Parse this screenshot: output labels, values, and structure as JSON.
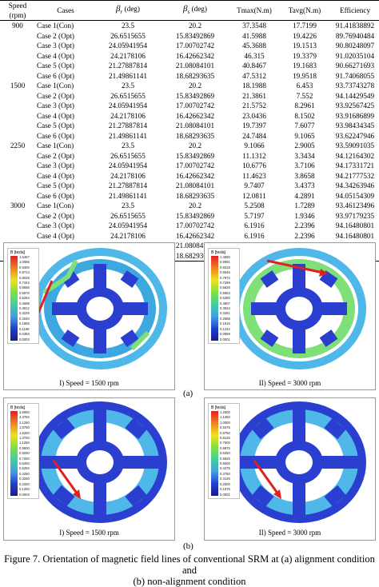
{
  "table": {
    "headers": {
      "speed": "Speed (rpm)",
      "cases": "Cases",
      "beta_r": "(deg)",
      "beta_s": "(deg)",
      "tmax": "Tmax(N.m)",
      "tavg": "Tavg(N.m)",
      "efficiency": "Efficiency"
    },
    "rows": [
      {
        "speed": "900",
        "case": "Case 1(Con)",
        "br": "23.5",
        "bs": "20.2",
        "tmax": "37.3548",
        "tavg": "17.7199",
        "eff": "91.41838892"
      },
      {
        "speed": "",
        "case": "Case 2 (Opt)",
        "br": "26.6515655",
        "bs": "15.83492869",
        "tmax": "41.5988",
        "tavg": "19.4226",
        "eff": "89.76940484"
      },
      {
        "speed": "",
        "case": "Case 3 (Opt)",
        "br": "24.05941954",
        "bs": "17.00702742",
        "tmax": "45.3688",
        "tavg": "19.1513",
        "eff": "90.80248097"
      },
      {
        "speed": "",
        "case": "Case 4 (Opt)",
        "br": "24.2178106",
        "bs": "16.42662342",
        "tmax": "46.315",
        "tavg": "19.3379",
        "eff": "91.02035104"
      },
      {
        "speed": "",
        "case": "Case 5 (Opt)",
        "br": "21.27887814",
        "bs": "21.08084101",
        "tmax": "40.8467",
        "tavg": "19.1683",
        "eff": "90.66271693"
      },
      {
        "speed": "",
        "case": "Case 6 (Opt)",
        "br": "21.49861141",
        "bs": "18.68293635",
        "tmax": "47.5312",
        "tavg": "19.9518",
        "eff": "91.74068055"
      },
      {
        "speed": "1500",
        "case": "Case 1(Con)",
        "br": "23.5",
        "bs": "20.2",
        "tmax": "18.1988",
        "tavg": "6.453",
        "eff": "93.73743278"
      },
      {
        "speed": "",
        "case": "Case 2 (Opt)",
        "br": "26.6515655",
        "bs": "15.83492869",
        "tmax": "21.3861",
        "tavg": "7.552",
        "eff": "94.14429549"
      },
      {
        "speed": "",
        "case": "Case 3 (Opt)",
        "br": "24.05941954",
        "bs": "17.00702742",
        "tmax": "21.5752",
        "tavg": "8.2961",
        "eff": "93.92567425"
      },
      {
        "speed": "",
        "case": "Case 4 (Opt)",
        "br": "24.2178106",
        "bs": "16.42662342",
        "tmax": "23.0436",
        "tavg": "8.1502",
        "eff": "93.91686899"
      },
      {
        "speed": "",
        "case": "Case 5 (Opt)",
        "br": "21.27887814",
        "bs": "21.08084101",
        "tmax": "19.7397",
        "tavg": "7.6077",
        "eff": "93.98434345"
      },
      {
        "speed": "",
        "case": "Case 6 (Opt)",
        "br": "21.49861141",
        "bs": "18.68293635",
        "tmax": "24.7484",
        "tavg": "9.1065",
        "eff": "93.62247946"
      },
      {
        "speed": "2250",
        "case": "Case 1(Con)",
        "br": "23.5",
        "bs": "20.2",
        "tmax": "9.1066",
        "tavg": "2.9005",
        "eff": "93.59091035"
      },
      {
        "speed": "",
        "case": "Case 2 (Opt)",
        "br": "26.6515655",
        "bs": "15.83492869",
        "tmax": "11.1312",
        "tavg": "3.3434",
        "eff": "94.12164302"
      },
      {
        "speed": "",
        "case": "Case 3 (Opt)",
        "br": "24.05941954",
        "bs": "17.00702742",
        "tmax": "10.6776",
        "tavg": "3.7106",
        "eff": "94.17331721"
      },
      {
        "speed": "",
        "case": "Case 4 (Opt)",
        "br": "24.2178106",
        "bs": "16.42662342",
        "tmax": "11.4623",
        "tavg": "3.8658",
        "eff": "94.21777532"
      },
      {
        "speed": "",
        "case": "Case 5 (Opt)",
        "br": "21.27887814",
        "bs": "21.08084101",
        "tmax": "9.7407",
        "tavg": "3.4373",
        "eff": "94.34263946"
      },
      {
        "speed": "",
        "case": "Case 6 (Opt)",
        "br": "21.49861141",
        "bs": "18.68293635",
        "tmax": "12.0811",
        "tavg": "4.2891",
        "eff": "94.05154309"
      },
      {
        "speed": "3000",
        "case": "Case 1(Con)",
        "br": "23.5",
        "bs": "20.2",
        "tmax": "5.2508",
        "tavg": "1.7289",
        "eff": "93.46123496"
      },
      {
        "speed": "",
        "case": "Case 2 (Opt)",
        "br": "26.6515655",
        "bs": "15.83492869",
        "tmax": "5.7197",
        "tavg": "1.9346",
        "eff": "93.97179235"
      },
      {
        "speed": "",
        "case": "Case 3 (Opt)",
        "br": "24.05941954",
        "bs": "17.00702742",
        "tmax": "6.1916",
        "tavg": "2.2396",
        "eff": "94.16480801"
      },
      {
        "speed": "",
        "case": "Case 4 (Opt)",
        "br": "24.2178106",
        "bs": "16.42662342",
        "tmax": "6.1916",
        "tavg": "2.2396",
        "eff": "94.16480801"
      },
      {
        "speed": "",
        "case": "Case 5 (Opt)",
        "br": "21.27887814",
        "bs": "21.08084101",
        "tmax": "5.6722",
        "tavg": "2.0619",
        "eff": "94.04731175"
      },
      {
        "speed": "",
        "case": "Case 6 (Opt)",
        "br": "21.49861141",
        "bs": "18.68293635",
        "tmax": "8.4088",
        "tavg": "2.5748",
        "eff": "94.66352466"
      }
    ]
  },
  "figure": {
    "panels": [
      {
        "caption": "I) Speed = 1500 rpm",
        "legend_title": "B [tesla]",
        "legend_values": [
          "1.6467",
          "1.0086",
          "0.9400",
          "0.8714",
          "0.8028",
          "0.7342",
          "0.6656",
          "0.5970",
          "0.5284",
          "0.4598",
          "0.3912",
          "0.3226",
          "0.2540",
          "0.1855",
          "0.1169",
          "0.0483",
          "0.0003"
        ]
      },
      {
        "caption": "II) Speed = 3000 rpm",
        "legend_title": "B [tesla]",
        "legend_values": [
          "1.4590",
          "0.9991",
          "0.9318",
          "0.8645",
          "0.7972",
          "0.7299",
          "0.6626",
          "0.5953",
          "0.5280",
          "0.4607",
          "0.3934",
          "0.3261",
          "0.2588",
          "0.1915",
          "0.1242",
          "0.0569",
          "0.0001"
        ]
      },
      {
        "caption": "I) Speed = 1500 rpm",
        "legend_title": "B [tesla]",
        "legend_values": [
          "2.6050",
          "2.3750",
          "2.1250",
          "1.8750",
          "1.6250",
          "1.3750",
          "1.1250",
          "0.9500",
          "0.8250",
          "0.7250",
          "0.6250",
          "0.5250",
          "0.4250",
          "0.3250",
          "0.2250",
          "0.1250",
          "0.0003"
        ]
      },
      {
        "caption": "II) Speed = 3000 rpm",
        "legend_title": "B [tesla]",
        "legend_values": [
          "1.2500",
          "1.1250",
          "1.0000",
          "0.9375",
          "0.8750",
          "0.8125",
          "0.7500",
          "0.6875",
          "0.6250",
          "0.5625",
          "0.5000",
          "0.4375",
          "0.3750",
          "0.3125",
          "0.2500",
          "0.1875",
          "0.0001"
        ]
      }
    ],
    "sub_label_a": "(a)",
    "sub_label_b": "(b)",
    "caption_line1": "Figure 7. Orientation of magnetic field lines of conventional SRM at (a) alignment condition and",
    "caption_line2": "(b) non-alignment condition"
  },
  "colors": {
    "rotor_blue": "#2a3fd0",
    "stator_cyan": "#4fb8e8",
    "high_field_green": "#7fe07a",
    "arrow_red": "#e02020"
  }
}
